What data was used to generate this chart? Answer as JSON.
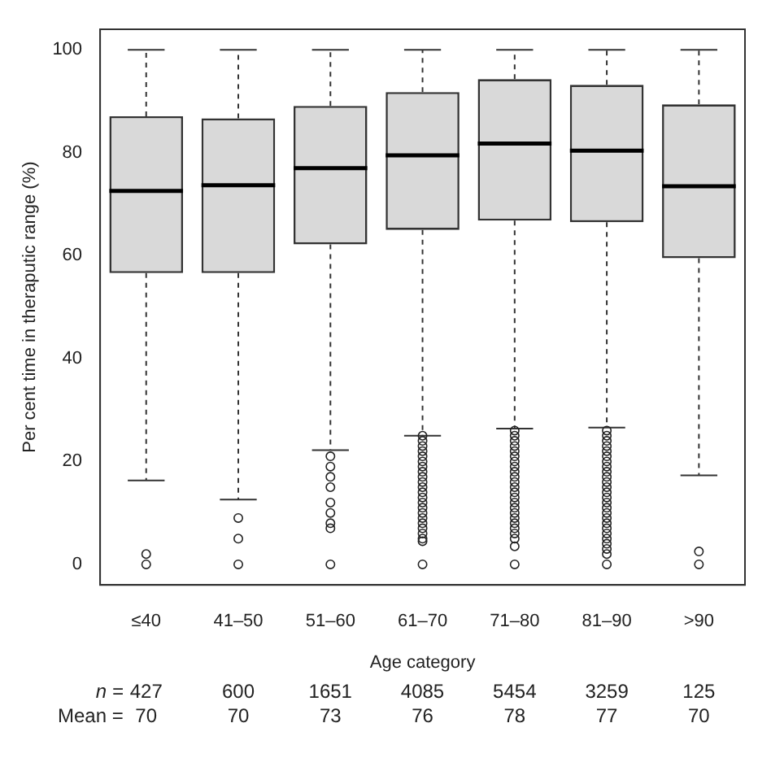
{
  "chart_data": {
    "type": "box",
    "xlabel": "Age category",
    "ylabel": "Per cent time in theraputic range (%)",
    "categories": [
      "≤40",
      "41–50",
      "51–60",
      "61–70",
      "71–80",
      "81–90",
      ">90"
    ],
    "ylim": [
      -4,
      104
    ],
    "yticks": [
      0,
      20,
      40,
      60,
      80,
      100
    ],
    "series": [
      {
        "color": "#d9d9d9",
        "boxes": [
          {
            "low": 16.3,
            "q1": 56.6,
            "median": 72.6,
            "q3": 87.1,
            "high": 100,
            "outliers": [
              0,
              2
            ]
          },
          {
            "low": 12.6,
            "q1": 56.6,
            "median": 73.7,
            "q3": 86.7,
            "high": 100,
            "outliers": [
              0,
              5,
              9
            ]
          },
          {
            "low": 22.2,
            "q1": 62.2,
            "median": 77,
            "q3": 89.1,
            "high": 100,
            "outliers": [
              0,
              7,
              8,
              10,
              12,
              15,
              17,
              19,
              21
            ]
          },
          {
            "low": 25,
            "q1": 65,
            "median": 79.5,
            "q3": 91.8,
            "high": 100,
            "outliers": [
              0,
              4.5,
              5,
              6,
              7,
              8,
              9,
              10,
              11,
              12,
              13,
              14,
              15,
              16,
              17,
              18,
              19,
              20,
              21,
              22,
              23,
              24,
              25
            ]
          },
          {
            "low": 26.4,
            "q1": 66.8,
            "median": 81.8,
            "q3": 94.3,
            "high": 100,
            "outliers": [
              0,
              3.5,
              5,
              6,
              7,
              8,
              9,
              10,
              11,
              12,
              13,
              14,
              15,
              16,
              17,
              18,
              19,
              20,
              21,
              22,
              23,
              24,
              25,
              26
            ]
          },
          {
            "low": 26.6,
            "q1": 66.5,
            "median": 80.4,
            "q3": 93.2,
            "high": 100,
            "outliers": [
              0,
              2,
              3,
              4,
              5,
              6,
              7,
              8,
              9,
              10,
              11,
              12,
              13,
              14,
              15,
              16,
              17,
              18,
              19,
              20,
              21,
              22,
              23,
              24,
              25,
              26
            ]
          },
          {
            "low": 17.3,
            "q1": 59.5,
            "median": 73.5,
            "q3": 89.4,
            "high": 100,
            "outliers": [
              0,
              2.5
            ]
          }
        ]
      }
    ],
    "annotations": [
      "n =",
      "427",
      "600",
      "1651",
      "4085",
      "5454",
      "3259",
      "125",
      "Mean =",
      "70",
      "70",
      "73",
      "76",
      "78",
      "77",
      "70"
    ]
  }
}
